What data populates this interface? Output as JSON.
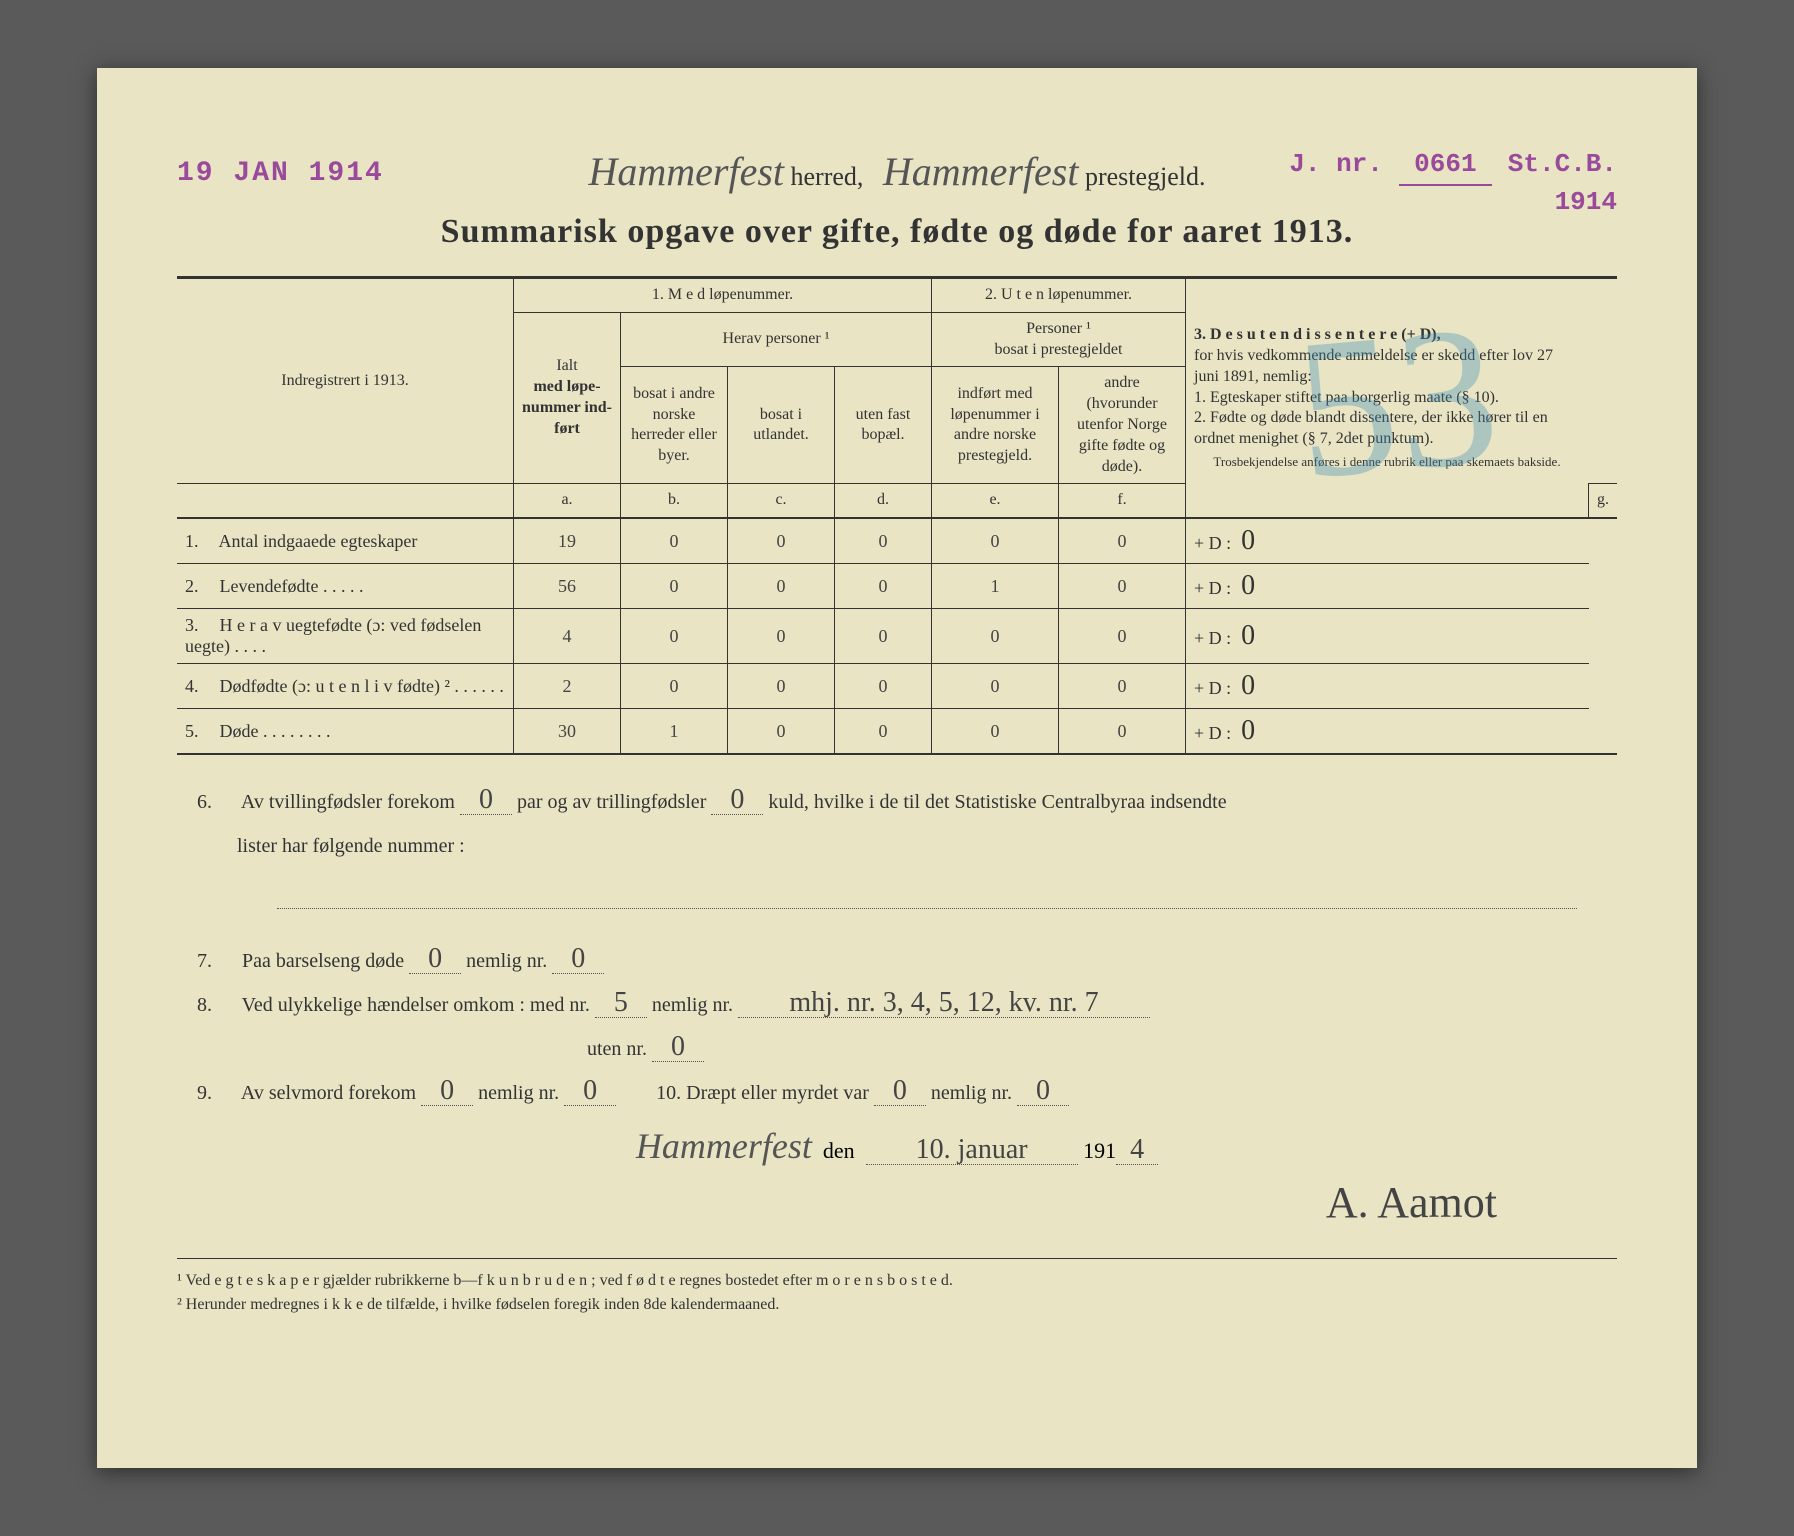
{
  "stamps": {
    "date": "19 JAN 1914",
    "jnr_prefix": "J. nr.",
    "jnr_number": "0661",
    "jnr_suffix": "St.C.B.",
    "jnr_year": "1914"
  },
  "header": {
    "herred_name": "Hammerfest",
    "herred_label": "herred,",
    "prestegjeld_name": "Hammerfest",
    "prestegjeld_label": "prestegjeld."
  },
  "title": "Summarisk opgave over gifte, fødte og døde for aaret 1913.",
  "big_mark": "53",
  "table": {
    "indreg_label": "Indregistrert i 1913.",
    "col1_title": "1.  M e d  løpenummer.",
    "col2_title": "2. U t e n løpenummer.",
    "col3_title": "3.  D e s u t e n  d i s s e n t e r e (+ D),",
    "ialt_label": "Ialt",
    "ialt_sub": "med løpe-nummer ind-ført",
    "herav_label": "Herav personer ¹",
    "col_b": "bosat i andre norske herreder eller byer.",
    "col_c": "bosat i utlandet.",
    "col_d": "uten fast bopæl.",
    "personer_label": "Personer ¹\nbosat i prestegjeldet",
    "col_e": "indført med løpenummer i andre norske prestegjeld.",
    "col_f": "andre (hvorunder utenfor Norge gifte fødte og døde).",
    "col_g_text": "for hvis vedkommende anmeldelse er skedd efter lov 27 juni 1891, nemlig:\n1. Egteskaper stiftet paa borgerlig maate (§ 10).\n2. Fødte og døde blandt dissentere, der ikke hører til en ordnet menighet (§ 7, 2det punktum).",
    "col_g_small": "Trosbekjendelse anføres i denne rubrik eller paa skemaets bakside.",
    "letters": {
      "a": "a.",
      "b": "b.",
      "c": "c.",
      "d": "d.",
      "e": "e.",
      "f": "f.",
      "g": "g."
    },
    "rows": [
      {
        "num": "1.",
        "label": "Antal indgaaede egteskaper",
        "a": "19",
        "b": "0",
        "c": "0",
        "d": "0",
        "e": "0",
        "f": "0",
        "g": "0"
      },
      {
        "num": "2.",
        "label": "Levendefødte  .  .  .  .  .",
        "a": "56",
        "b": "0",
        "c": "0",
        "d": "0",
        "e": "1",
        "f": "0",
        "g": "0"
      },
      {
        "num": "3.",
        "label": "H e r a v uegtefødte (ɔ: ved fødselen uegte)  .  .  .  .",
        "a": "4",
        "b": "0",
        "c": "0",
        "d": "0",
        "e": "0",
        "f": "0",
        "g": "0"
      },
      {
        "num": "4.",
        "label": "Dødfødte  (ɔ:  u t e n  l i v  fødte) ²  .  .  .  .  .  .",
        "a": "2",
        "b": "0",
        "c": "0",
        "d": "0",
        "e": "0",
        "f": "0",
        "g": "0"
      },
      {
        "num": "5.",
        "label": "Døde .  .  .  .  .  .  .  .",
        "a": "30",
        "b": "1",
        "c": "0",
        "d": "0",
        "e": "0",
        "f": "0",
        "g": "0"
      }
    ],
    "d_prefix": "+ D :"
  },
  "section6": {
    "l6a": "Av tvillingfødsler forekom",
    "l6_val1": "0",
    "l6b": "par og av trillingfødsler",
    "l6_val2": "0",
    "l6c": "kuld, hvilke i de til det Statistiske Centralbyraa indsendte",
    "l6d": "lister har følgende nummer :",
    "l7a": "Paa barselseng døde",
    "l7_val1": "0",
    "l7b": "nemlig nr.",
    "l7_val2": "0",
    "l8a": "Ved ulykkelige hændelser omkom : med nr.",
    "l8_val1": "5",
    "l8b": "nemlig nr.",
    "l8_val2": "mhj. nr. 3, 4, 5, 12, kv. nr. 7",
    "l8c": "uten nr.",
    "l8_val3": "0",
    "l9a": "Av selvmord forekom",
    "l9_val1": "0",
    "l9b": "nemlig nr.",
    "l9_val2": "0",
    "l10a": "10.   Dræpt eller myrdet var",
    "l10_val1": "0",
    "l10b": "nemlig nr.",
    "l10_val2": "0"
  },
  "signature": {
    "place": "Hammerfest",
    "den": "den",
    "date": "10. januar",
    "year_prefix": "191",
    "year_suffix": "4",
    "name": "A. Aamot"
  },
  "footnotes": {
    "f1": "¹ Ved e g t e s k a p e r gjælder rubrikkerne b—f  k u n  b r u d e n ; ved f ø d t e regnes bostedet efter m o r e n s  b o s t e d.",
    "f2": "² Herunder medregnes i k k e de tilfælde, i hvilke fødselen foregik inden 8de kalendermaaned."
  }
}
